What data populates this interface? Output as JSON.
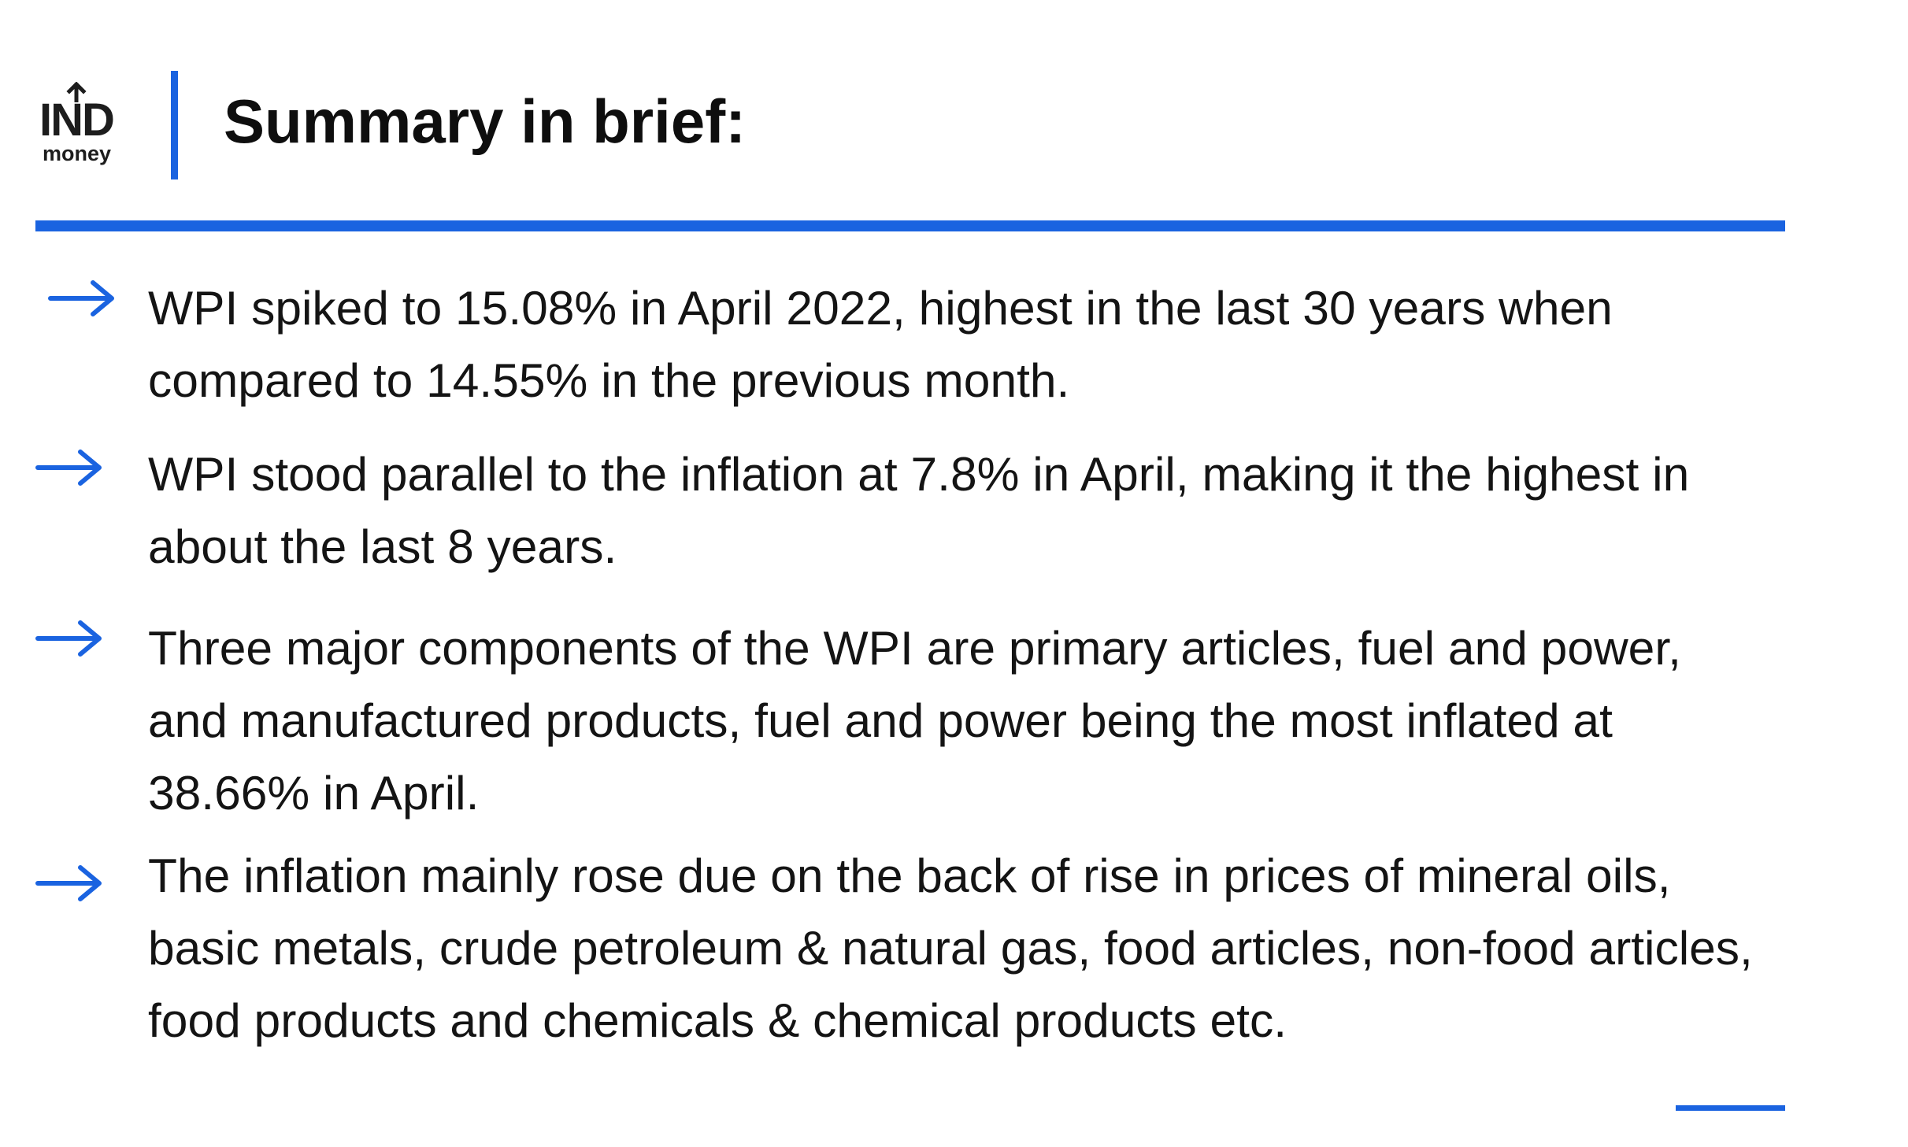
{
  "header": {
    "logo_main": "IND",
    "logo_sub": "money",
    "title": "Summary in brief:"
  },
  "bullets": [
    {
      "icon": "arrow-right-icon",
      "text": "WPI spiked to 15.08% in April 2022, highest in the last 30 years when\ncompared to 14.55% in the previous month."
    },
    {
      "icon": "arrow-right-icon",
      "text": "WPI stood  parallel to the inflation at 7.8% in April, making it the highest in\nabout the last 8 years."
    },
    {
      "icon": "arrow-right-icon",
      "text": "Three major components of the WPI are  primary articles, fuel and power,\nand manufactured products, fuel and power being the most inflated at\n38.66% in April."
    },
    {
      "icon": "arrow-right-icon",
      "text": "The inflation mainly rose due on the back of rise in prices of mineral oils,\nbasic metals, crude petroleum & natural gas, food articles, non-food articles,\nfood products and chemicals & chemical products etc."
    }
  ],
  "colors": {
    "accent": "#1a63e0",
    "text": "#141414"
  }
}
